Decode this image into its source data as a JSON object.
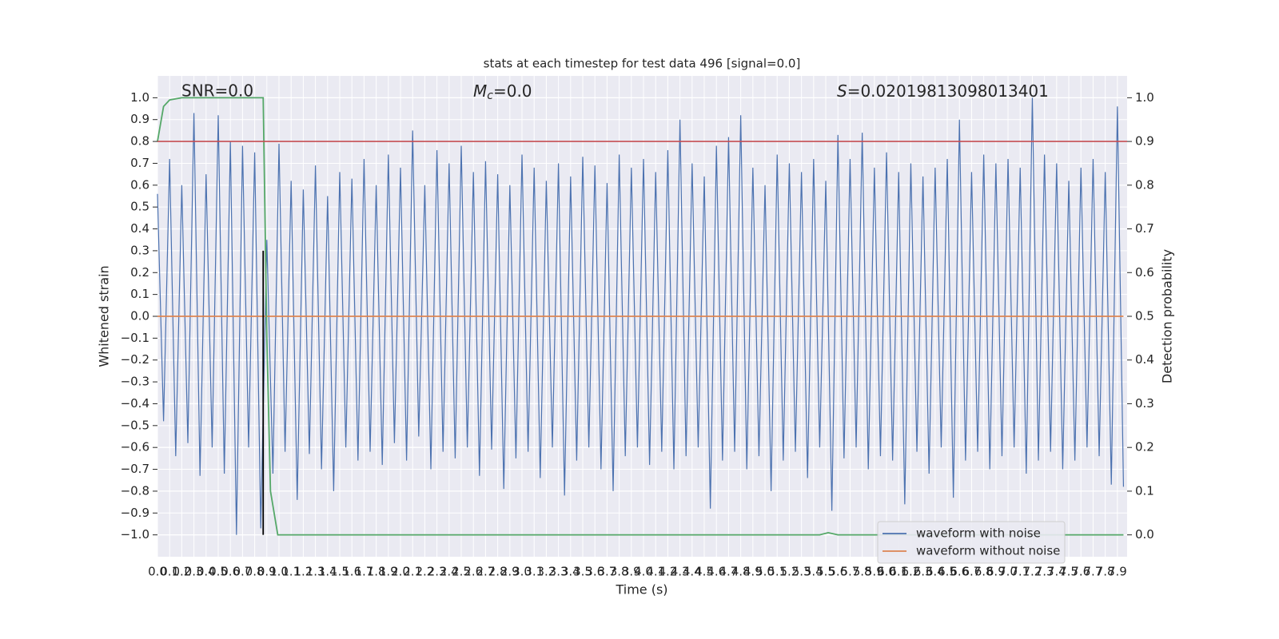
{
  "chart_data": {
    "type": "line",
    "title": "stats at each timestep for test data 496 [signal=0.0]",
    "x_label": "Time (s)",
    "y_label": "Whitened strain",
    "y2_label": "Detection probability",
    "annotations": [
      "SNR=0.0",
      {
        "symbol": "M",
        "subscript": "c",
        "text": "=0.0"
      },
      {
        "symbol": "S",
        "text": "=0.02019813098013401"
      }
    ],
    "xlim": [
      0,
      7.98
    ],
    "ylim": [
      -1.1,
      1.1
    ],
    "y2lim": [
      -0.05,
      1.05
    ],
    "grid": true,
    "legend": "lower right",
    "xticks": [
      {
        "value": 0,
        "label": "0.0"
      },
      0.1,
      0.2,
      0.3,
      0.4,
      0.5,
      0.6,
      0.7,
      0.8,
      0.9,
      {
        "value": 1,
        "label": "1.0"
      },
      1.1,
      1.2,
      1.3,
      1.4,
      1.5,
      1.6,
      1.7,
      1.8,
      1.9,
      {
        "value": 2,
        "label": "2.0"
      },
      2.1,
      2.2,
      2.3,
      2.4,
      2.5,
      2.6,
      2.7,
      2.8,
      2.9,
      {
        "value": 3,
        "label": "3.0"
      },
      3.1,
      3.2,
      3.3,
      3.4,
      3.5,
      3.6,
      3.7,
      3.8,
      3.9,
      {
        "value": 4,
        "label": "4.0"
      },
      4.1,
      4.2,
      4.3,
      4.4,
      4.5,
      4.6,
      4.7,
      4.8,
      4.9,
      {
        "value": 5,
        "label": "5.0"
      },
      5.1,
      5.2,
      5.3,
      5.4,
      5.5,
      5.6,
      5.7,
      5.8,
      5.9,
      {
        "value": 6,
        "label": "6.0"
      },
      6.1,
      6.2,
      6.3,
      6.4,
      6.5,
      6.6,
      6.7,
      6.8,
      6.9,
      {
        "value": 7,
        "label": "7.0"
      },
      7.1,
      7.2,
      7.3,
      7.4,
      7.5,
      7.6,
      7.7,
      7.8,
      7.9
    ],
    "yticks": [
      {
        "value": 1,
        "label": "1.0"
      },
      0.9,
      0.8,
      0.7,
      0.6,
      0.5,
      0.4,
      0.3,
      0.2,
      0.1,
      {
        "value": 0,
        "label": "0.0"
      },
      {
        "value": -0.1,
        "label": "−0.1"
      },
      {
        "value": -0.2,
        "label": "−0.2"
      },
      {
        "value": -0.3,
        "label": "−0.3"
      },
      {
        "value": -0.4,
        "label": "−0.4"
      },
      {
        "value": -0.5,
        "label": "−0.5"
      },
      {
        "value": -0.6,
        "label": "−0.6"
      },
      {
        "value": -0.7,
        "label": "−0.7"
      },
      {
        "value": -0.8,
        "label": "−0.8"
      },
      {
        "value": -0.9,
        "label": "−0.9"
      },
      {
        "value": -1,
        "label": "−1.0"
      }
    ],
    "y2ticks": [
      {
        "value": 1,
        "label": "1.0"
      },
      0.9,
      0.8,
      0.7,
      0.6,
      0.5,
      0.4,
      0.3,
      0.2,
      0.1,
      {
        "value": 0,
        "label": "0.0"
      }
    ],
    "series": [
      {
        "name": "waveform with noise",
        "color": "#4c72b0",
        "x": [
          0,
          0.05,
          0.1,
          0.15,
          0.2,
          0.25,
          0.3,
          0.35,
          0.4,
          0.45,
          0.5,
          0.55,
          0.6,
          0.65,
          0.7,
          0.75,
          0.8,
          0.85,
          0.9,
          0.95,
          1,
          1.05,
          1.1,
          1.15,
          1.2,
          1.25,
          1.3,
          1.35,
          1.4,
          1.45,
          1.5,
          1.55,
          1.6,
          1.65,
          1.7,
          1.75,
          1.8,
          1.85,
          1.9,
          1.95,
          2,
          2.05,
          2.1,
          2.15,
          2.2,
          2.25,
          2.3,
          2.35,
          2.4,
          2.45,
          2.5,
          2.55,
          2.6,
          2.65,
          2.7,
          2.75,
          2.8,
          2.85,
          2.9,
          2.95,
          3,
          3.05,
          3.1,
          3.15,
          3.2,
          3.25,
          3.3,
          3.35,
          3.4,
          3.45,
          3.5,
          3.55,
          3.6,
          3.65,
          3.7,
          3.75,
          3.8,
          3.85,
          3.9,
          3.95,
          4,
          4.05,
          4.1,
          4.15,
          4.2,
          4.25,
          4.3,
          4.35,
          4.4,
          4.45,
          4.5,
          4.55,
          4.6,
          4.65,
          4.7,
          4.75,
          4.8,
          4.85,
          4.9,
          4.95,
          5,
          5.05,
          5.1,
          5.15,
          5.2,
          5.25,
          5.3,
          5.35,
          5.4,
          5.45,
          5.5,
          5.55,
          5.6,
          5.65,
          5.7,
          5.75,
          5.8,
          5.85,
          5.9,
          5.95,
          6,
          6.05,
          6.1,
          6.15,
          6.2,
          6.25,
          6.3,
          6.35,
          6.4,
          6.45,
          6.5,
          6.55,
          6.6,
          6.65,
          6.7,
          6.75,
          6.8,
          6.85,
          6.9,
          6.95,
          7,
          7.05,
          7.1,
          7.15,
          7.2,
          7.25,
          7.3,
          7.35,
          7.4,
          7.45,
          7.5,
          7.55,
          7.6,
          7.65,
          7.7,
          7.75,
          7.8,
          7.85,
          7.9,
          7.95
        ],
        "values": [
          0.56,
          -0.48,
          0.72,
          -0.64,
          0.6,
          -0.58,
          0.93,
          -0.73,
          0.65,
          -0.6,
          0.92,
          -0.72,
          0.8,
          -1.0,
          0.78,
          -0.6,
          0.75,
          -0.97,
          0.35,
          -0.72,
          0.79,
          -0.62,
          0.62,
          -0.84,
          0.58,
          -0.63,
          0.69,
          -0.7,
          0.55,
          -0.8,
          0.66,
          -0.6,
          0.63,
          -0.66,
          0.72,
          -0.62,
          0.6,
          -0.68,
          0.74,
          -0.58,
          0.68,
          -0.66,
          0.85,
          -0.55,
          0.6,
          -0.7,
          0.76,
          -0.62,
          0.7,
          -0.65,
          0.78,
          -0.6,
          0.66,
          -0.73,
          0.71,
          -0.61,
          0.65,
          -0.79,
          0.6,
          -0.65,
          0.74,
          -0.62,
          0.68,
          -0.74,
          0.62,
          -0.6,
          0.7,
          -0.82,
          0.64,
          -0.66,
          0.73,
          -0.6,
          0.69,
          -0.7,
          0.61,
          -0.8,
          0.74,
          -0.64,
          0.68,
          -0.6,
          0.72,
          -0.68,
          0.66,
          -0.62,
          0.76,
          -0.7,
          0.9,
          -0.64,
          0.7,
          -0.6,
          0.64,
          -0.88,
          0.78,
          -0.66,
          0.82,
          -0.62,
          0.92,
          -0.7,
          0.68,
          -0.64,
          0.6,
          -0.8,
          0.74,
          -0.66,
          0.7,
          -0.62,
          0.66,
          -0.74,
          0.72,
          -0.6,
          0.62,
          -0.89,
          0.83,
          -0.65,
          0.72,
          -0.6,
          0.84,
          -0.7,
          0.68,
          -0.64,
          0.75,
          -0.66,
          0.66,
          -0.86,
          0.7,
          -0.62,
          0.64,
          -0.72,
          0.68,
          -0.6,
          0.72,
          -0.83,
          0.9,
          -0.66,
          0.66,
          -0.62,
          0.74,
          -0.7,
          0.7,
          -0.64,
          0.72,
          -0.6,
          0.68,
          -0.72,
          1.0,
          -0.66,
          0.74,
          -0.62,
          0.7,
          -0.7,
          0.62,
          -0.66,
          0.68,
          -0.6,
          0.72,
          -0.64,
          0.66,
          -0.77,
          0.96,
          -0.78
        ]
      },
      {
        "name": "waveform without noise",
        "color": "#dd8452",
        "x": [
          0,
          7.95
        ],
        "values": [
          0,
          0
        ]
      },
      {
        "color": "#55a868",
        "axis": "y2",
        "x": [
          0,
          0.05,
          0.1,
          0.2,
          0.87,
          0.9,
          0.93,
          0.99,
          5.45,
          5.52,
          5.6,
          7.95
        ],
        "values": [
          0.9,
          0.98,
          0.995,
          1.0,
          1.0,
          0.45,
          0.1,
          0.0,
          0.0,
          0.005,
          0.0,
          0.0
        ]
      }
    ],
    "threshold": {
      "value": 0.9,
      "axis": "y2",
      "color": "#c44e52"
    },
    "vline": {
      "x": 0.87,
      "ymin": -1.0,
      "ymax": 0.3,
      "color": "#000000"
    }
  }
}
